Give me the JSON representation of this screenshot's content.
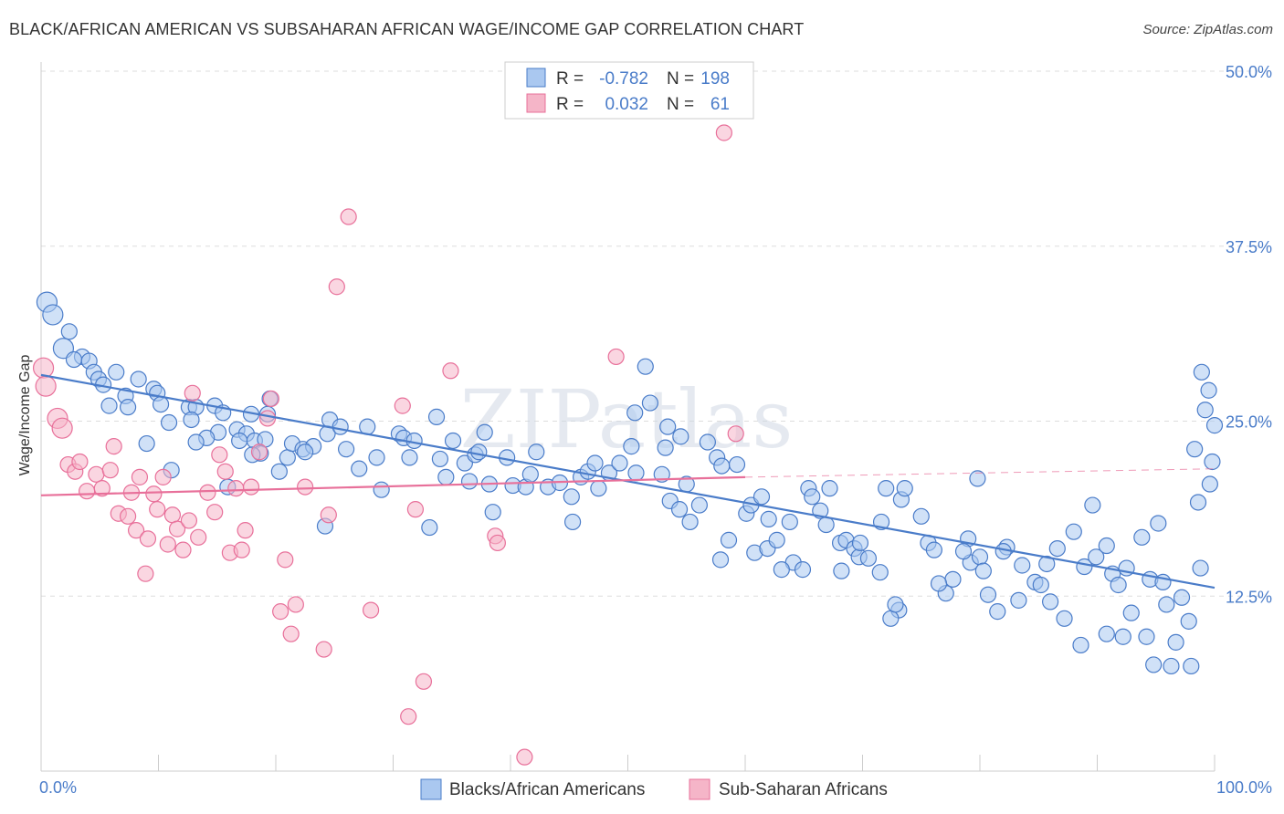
{
  "title": "BLACK/AFRICAN AMERICAN VS SUBSAHARAN AFRICAN WAGE/INCOME GAP CORRELATION CHART",
  "source": "Source: ZipAtlas.com",
  "watermark": "ZIPatlas",
  "colors": {
    "blue": "#4a7cc9",
    "blue_fill": "#aac8f0",
    "pink": "#e8709a",
    "pink_fill": "#f5b5c8",
    "grid": "#dddddd"
  },
  "legend": {
    "rows": [
      {
        "r_label": "R =",
        "r_value": "-0.782",
        "n_label": "N =",
        "n_value": "198"
      },
      {
        "r_label": "R =",
        "r_value": "0.032",
        "n_label": "N =",
        "n_value": "61"
      }
    ]
  },
  "chart_data": {
    "type": "scatter",
    "ylabel": "Wage/Income Gap",
    "xlabel": "",
    "x_ticks": [
      "0.0%",
      "100.0%"
    ],
    "y_ticks": [
      "12.5%",
      "25.0%",
      "37.5%",
      "50.0%"
    ],
    "xlim": [
      0,
      100
    ],
    "ylim": [
      0,
      50
    ],
    "grid": "horizontal dashed",
    "series": [
      {
        "name": "Blacks/African Americans",
        "r": -0.782,
        "n": 198,
        "trend": {
          "x": [
            0,
            100
          ],
          "y": [
            28.3,
            13.1
          ]
        },
        "points": [
          [
            0.5,
            33.5
          ],
          [
            1,
            32.6
          ],
          [
            2.4,
            31.4
          ],
          [
            1.9,
            30.2
          ],
          [
            3.5,
            29.6
          ],
          [
            2.8,
            29.4
          ],
          [
            4.1,
            29.3
          ],
          [
            4.5,
            28.5
          ],
          [
            6.4,
            28.5
          ],
          [
            4.9,
            28.0
          ],
          [
            5.3,
            27.6
          ],
          [
            8.3,
            28.0
          ],
          [
            9.6,
            27.3
          ],
          [
            9.9,
            27.0
          ],
          [
            7.2,
            26.8
          ],
          [
            5.8,
            26.1
          ],
          [
            7.4,
            26.0
          ],
          [
            10.2,
            26.2
          ],
          [
            12.6,
            26.0
          ],
          [
            13.2,
            26.0
          ],
          [
            14.8,
            26.1
          ],
          [
            15.5,
            25.6
          ],
          [
            17.9,
            25.5
          ],
          [
            19.5,
            26.6
          ],
          [
            19.3,
            25.5
          ],
          [
            10.9,
            24.9
          ],
          [
            12.8,
            25.1
          ],
          [
            15.1,
            24.2
          ],
          [
            16.7,
            24.4
          ],
          [
            17.5,
            24.1
          ],
          [
            14.1,
            23.8
          ],
          [
            16.9,
            23.6
          ],
          [
            18.2,
            23.6
          ],
          [
            19.1,
            23.7
          ],
          [
            18.7,
            22.7
          ],
          [
            21.0,
            22.4
          ],
          [
            21.4,
            23.4
          ],
          [
            22.3,
            23.0
          ],
          [
            23.2,
            23.2
          ],
          [
            24.4,
            24.1
          ],
          [
            24.6,
            25.1
          ],
          [
            25.5,
            24.6
          ],
          [
            26.0,
            23.0
          ],
          [
            27.8,
            24.6
          ],
          [
            27.1,
            21.6
          ],
          [
            28.6,
            22.4
          ],
          [
            30.5,
            24.1
          ],
          [
            30.9,
            23.8
          ],
          [
            31.8,
            23.6
          ],
          [
            31.4,
            22.4
          ],
          [
            33.7,
            25.3
          ],
          [
            34.0,
            22.3
          ],
          [
            34.5,
            21.0
          ],
          [
            35.1,
            23.6
          ],
          [
            36.1,
            22.0
          ],
          [
            37.0,
            22.6
          ],
          [
            37.3,
            22.8
          ],
          [
            38.2,
            20.5
          ],
          [
            37.8,
            24.2
          ],
          [
            39.7,
            22.4
          ],
          [
            40.2,
            20.4
          ],
          [
            41.3,
            20.3
          ],
          [
            42.2,
            22.8
          ],
          [
            41.7,
            21.2
          ],
          [
            43.2,
            20.3
          ],
          [
            44.2,
            20.6
          ],
          [
            45.2,
            19.6
          ],
          [
            46.0,
            21.0
          ],
          [
            46.6,
            21.4
          ],
          [
            47.5,
            20.2
          ],
          [
            48.4,
            21.3
          ],
          [
            47.2,
            22.0
          ],
          [
            49.3,
            22.0
          ],
          [
            50.7,
            21.3
          ],
          [
            51.5,
            28.9
          ],
          [
            50.6,
            25.6
          ],
          [
            50.3,
            23.2
          ],
          [
            51.9,
            26.3
          ],
          [
            53.4,
            24.6
          ],
          [
            54.5,
            23.9
          ],
          [
            52.9,
            21.2
          ],
          [
            53.6,
            19.3
          ],
          [
            54.4,
            18.7
          ],
          [
            55.0,
            20.5
          ],
          [
            55.3,
            17.8
          ],
          [
            56.1,
            19.0
          ],
          [
            56.8,
            23.5
          ],
          [
            57.6,
            22.4
          ],
          [
            58.0,
            21.8
          ],
          [
            58.6,
            16.5
          ],
          [
            59.3,
            21.9
          ],
          [
            60.1,
            18.4
          ],
          [
            60.5,
            19.0
          ],
          [
            61.4,
            19.6
          ],
          [
            62.0,
            18.0
          ],
          [
            60.8,
            15.6
          ],
          [
            61.9,
            15.9
          ],
          [
            62.7,
            16.5
          ],
          [
            63.8,
            17.8
          ],
          [
            64.1,
            14.9
          ],
          [
            64.9,
            14.4
          ],
          [
            65.4,
            20.2
          ],
          [
            65.7,
            19.6
          ],
          [
            67.2,
            20.2
          ],
          [
            66.4,
            18.6
          ],
          [
            66.9,
            17.6
          ],
          [
            68.1,
            16.3
          ],
          [
            68.6,
            16.5
          ],
          [
            69.3,
            15.9
          ],
          [
            69.7,
            15.3
          ],
          [
            69.8,
            16.3
          ],
          [
            70.5,
            15.2
          ],
          [
            71.5,
            14.2
          ],
          [
            71.6,
            17.8
          ],
          [
            72.0,
            20.2
          ],
          [
            73.3,
            19.4
          ],
          [
            73.1,
            11.5
          ],
          [
            72.4,
            10.9
          ],
          [
            73.6,
            20.2
          ],
          [
            75.0,
            18.2
          ],
          [
            75.6,
            16.3
          ],
          [
            76.1,
            15.8
          ],
          [
            77.7,
            13.7
          ],
          [
            77.1,
            12.7
          ],
          [
            76.5,
            13.4
          ],
          [
            79.0,
            16.6
          ],
          [
            79.2,
            14.9
          ],
          [
            78.6,
            15.7
          ],
          [
            80.0,
            15.3
          ],
          [
            80.3,
            14.3
          ],
          [
            80.7,
            12.6
          ],
          [
            81.5,
            11.4
          ],
          [
            82.3,
            16.0
          ],
          [
            82.0,
            15.7
          ],
          [
            83.6,
            14.7
          ],
          [
            83.3,
            12.2
          ],
          [
            84.7,
            13.5
          ],
          [
            85.7,
            14.8
          ],
          [
            85.2,
            13.3
          ],
          [
            86.0,
            12.1
          ],
          [
            86.6,
            15.9
          ],
          [
            87.2,
            10.9
          ],
          [
            88.0,
            17.1
          ],
          [
            88.9,
            14.6
          ],
          [
            89.6,
            19.0
          ],
          [
            88.6,
            9.0
          ],
          [
            89.9,
            15.3
          ],
          [
            90.8,
            16.1
          ],
          [
            91.3,
            14.1
          ],
          [
            92.5,
            14.5
          ],
          [
            92.9,
            11.3
          ],
          [
            91.8,
            13.3
          ],
          [
            92.2,
            9.6
          ],
          [
            93.8,
            16.7
          ],
          [
            94.5,
            13.7
          ],
          [
            95.6,
            13.5
          ],
          [
            95.9,
            11.9
          ],
          [
            97.2,
            12.4
          ],
          [
            96.7,
            9.2
          ],
          [
            97.8,
            10.7
          ],
          [
            98.8,
            14.5
          ],
          [
            98.6,
            19.2
          ],
          [
            99.6,
            20.5
          ],
          [
            98.3,
            23.0
          ],
          [
            99.8,
            22.1
          ],
          [
            99.2,
            25.8
          ],
          [
            100.0,
            24.7
          ],
          [
            99.5,
            27.2
          ],
          [
            98.9,
            28.5
          ],
          [
            95.2,
            17.7
          ],
          [
            94.2,
            9.6
          ],
          [
            90.8,
            9.8
          ],
          [
            79.8,
            20.9
          ],
          [
            72.8,
            11.9
          ],
          [
            68.2,
            14.3
          ],
          [
            63.1,
            14.4
          ],
          [
            57.9,
            15.1
          ],
          [
            53.2,
            23.1
          ],
          [
            45.3,
            17.8
          ],
          [
            38.5,
            18.5
          ],
          [
            36.5,
            20.7
          ],
          [
            33.1,
            17.4
          ],
          [
            29.0,
            20.1
          ],
          [
            24.2,
            17.5
          ],
          [
            22.5,
            22.8
          ],
          [
            20.3,
            21.4
          ],
          [
            18.0,
            22.6
          ],
          [
            15.9,
            20.3
          ],
          [
            13.2,
            23.5
          ],
          [
            11.1,
            21.5
          ],
          [
            9.0,
            23.4
          ],
          [
            98.0,
            7.5
          ],
          [
            96.3,
            7.5
          ],
          [
            94.8,
            7.6
          ]
        ]
      },
      {
        "name": "Sub-Saharan Africans",
        "r": 0.032,
        "n": 61,
        "trend": {
          "x": [
            0,
            60
          ],
          "y": [
            19.7,
            21.0
          ]
        },
        "trend_dashed": {
          "x": [
            60,
            100
          ],
          "y": [
            21.0,
            21.6
          ]
        },
        "points": [
          [
            0.2,
            28.8
          ],
          [
            0.4,
            27.5
          ],
          [
            1.4,
            25.2
          ],
          [
            1.8,
            24.5
          ],
          [
            2.3,
            21.9
          ],
          [
            2.9,
            21.4
          ],
          [
            3.3,
            22.1
          ],
          [
            3.9,
            20.0
          ],
          [
            4.7,
            21.2
          ],
          [
            5.2,
            20.2
          ],
          [
            5.9,
            21.5
          ],
          [
            6.2,
            23.2
          ],
          [
            6.6,
            18.4
          ],
          [
            7.4,
            18.2
          ],
          [
            7.7,
            19.9
          ],
          [
            8.1,
            17.2
          ],
          [
            8.4,
            21.0
          ],
          [
            8.9,
            14.1
          ],
          [
            9.1,
            16.6
          ],
          [
            9.6,
            19.8
          ],
          [
            9.9,
            18.7
          ],
          [
            10.4,
            21.0
          ],
          [
            10.8,
            16.2
          ],
          [
            11.2,
            18.3
          ],
          [
            11.6,
            17.3
          ],
          [
            12.1,
            15.8
          ],
          [
            12.6,
            17.9
          ],
          [
            12.9,
            27.0
          ],
          [
            13.4,
            16.7
          ],
          [
            14.2,
            19.9
          ],
          [
            14.8,
            18.5
          ],
          [
            15.2,
            22.6
          ],
          [
            15.7,
            21.4
          ],
          [
            16.1,
            15.6
          ],
          [
            16.6,
            20.2
          ],
          [
            17.1,
            15.8
          ],
          [
            17.4,
            17.2
          ],
          [
            17.9,
            20.3
          ],
          [
            18.6,
            22.8
          ],
          [
            19.3,
            25.2
          ],
          [
            19.6,
            26.6
          ],
          [
            20.4,
            11.4
          ],
          [
            20.8,
            15.1
          ],
          [
            21.3,
            9.8
          ],
          [
            21.7,
            11.9
          ],
          [
            22.5,
            20.3
          ],
          [
            24.1,
            8.7
          ],
          [
            24.5,
            18.3
          ],
          [
            25.2,
            34.6
          ],
          [
            26.2,
            39.6
          ],
          [
            28.1,
            11.5
          ],
          [
            30.8,
            26.1
          ],
          [
            31.3,
            3.9
          ],
          [
            31.9,
            18.7
          ],
          [
            32.6,
            6.4
          ],
          [
            34.9,
            28.6
          ],
          [
            38.7,
            16.8
          ],
          [
            38.9,
            16.3
          ],
          [
            41.2,
            1.0
          ],
          [
            49.0,
            29.6
          ],
          [
            58.2,
            45.6
          ],
          [
            59.2,
            24.1
          ]
        ]
      }
    ]
  },
  "bottom_legend": {
    "items": [
      {
        "label": "Blacks/African Americans"
      },
      {
        "label": "Sub-Saharan Africans"
      }
    ]
  }
}
